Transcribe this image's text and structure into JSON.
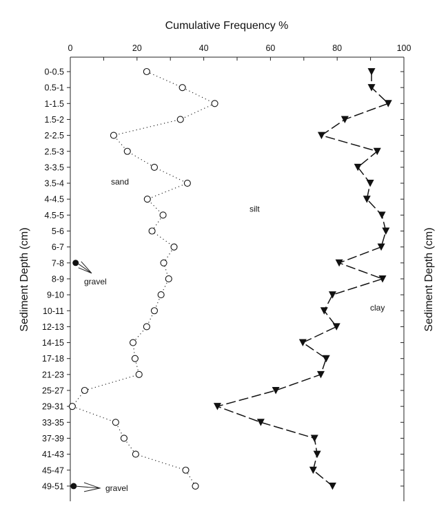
{
  "chart_data": {
    "type": "line",
    "title": "Cumulative Frequency %",
    "xlabel": "Cumulative Frequency %",
    "ylabel": "Sediment Depth (cm)",
    "ylabel_right": "Sediment Depth (cm)",
    "xlim": [
      0,
      100
    ],
    "x_ticks": [
      0,
      20,
      40,
      60,
      80,
      100
    ],
    "x_axis_position": "top",
    "grid": false,
    "categories": [
      "0-0.5",
      "0.5-1",
      "1-1.5",
      "1.5-2",
      "2-2.5",
      "2.5-3",
      "3-3.5",
      "3.5-4",
      "4-4.5",
      "4.5-5",
      "5-6",
      "6-7",
      "7-8",
      "8-9",
      "9-10",
      "10-11",
      "12-13",
      "14-15",
      "17-18",
      "21-23",
      "25-27",
      "29-31",
      "33-35",
      "37-39",
      "41-43",
      "45-47",
      "49-51"
    ],
    "series": [
      {
        "name": "sand",
        "marker": "open-circle",
        "line": "dotted",
        "values": [
          22.9,
          33.6,
          43.3,
          33.0,
          13.0,
          17.1,
          25.2,
          35.1,
          23.1,
          27.8,
          24.5,
          31.1,
          28.0,
          29.5,
          27.2,
          25.2,
          22.9,
          18.8,
          19.4,
          20.6,
          4.3,
          0.6,
          13.6,
          16.1,
          19.6,
          34.6,
          37.5
        ]
      },
      {
        "name": "clay",
        "marker": "filled-down-triangle",
        "line": "dashed",
        "values": [
          90.3,
          90.3,
          95.3,
          82.3,
          75.3,
          92.0,
          86.2,
          89.9,
          88.9,
          93.4,
          94.6,
          93.2,
          80.6,
          93.6,
          78.6,
          76.1,
          79.8,
          69.7,
          76.7,
          75.1,
          61.6,
          44.1,
          57.1,
          73.2,
          74.0,
          72.8,
          78.6
        ]
      },
      {
        "name": "gravel",
        "marker": "filled-circle",
        "line": "none",
        "points": [
          {
            "category": "7-8",
            "value": 1.6
          },
          {
            "category": "49-51",
            "value": 1.0
          }
        ]
      }
    ],
    "annotations": [
      {
        "text": "sand",
        "x": 15,
        "category": "3.5-4"
      },
      {
        "text": "silt",
        "x": 55,
        "category": "4.5-5"
      },
      {
        "text": "clay",
        "x": 88,
        "category": "10-11"
      },
      {
        "text": "gravel",
        "x": 6,
        "category": "8-9",
        "arrow_to": "7-8"
      },
      {
        "text": "gravel",
        "x": 10,
        "category": "49-51",
        "arrow_to": "49-51"
      }
    ]
  }
}
